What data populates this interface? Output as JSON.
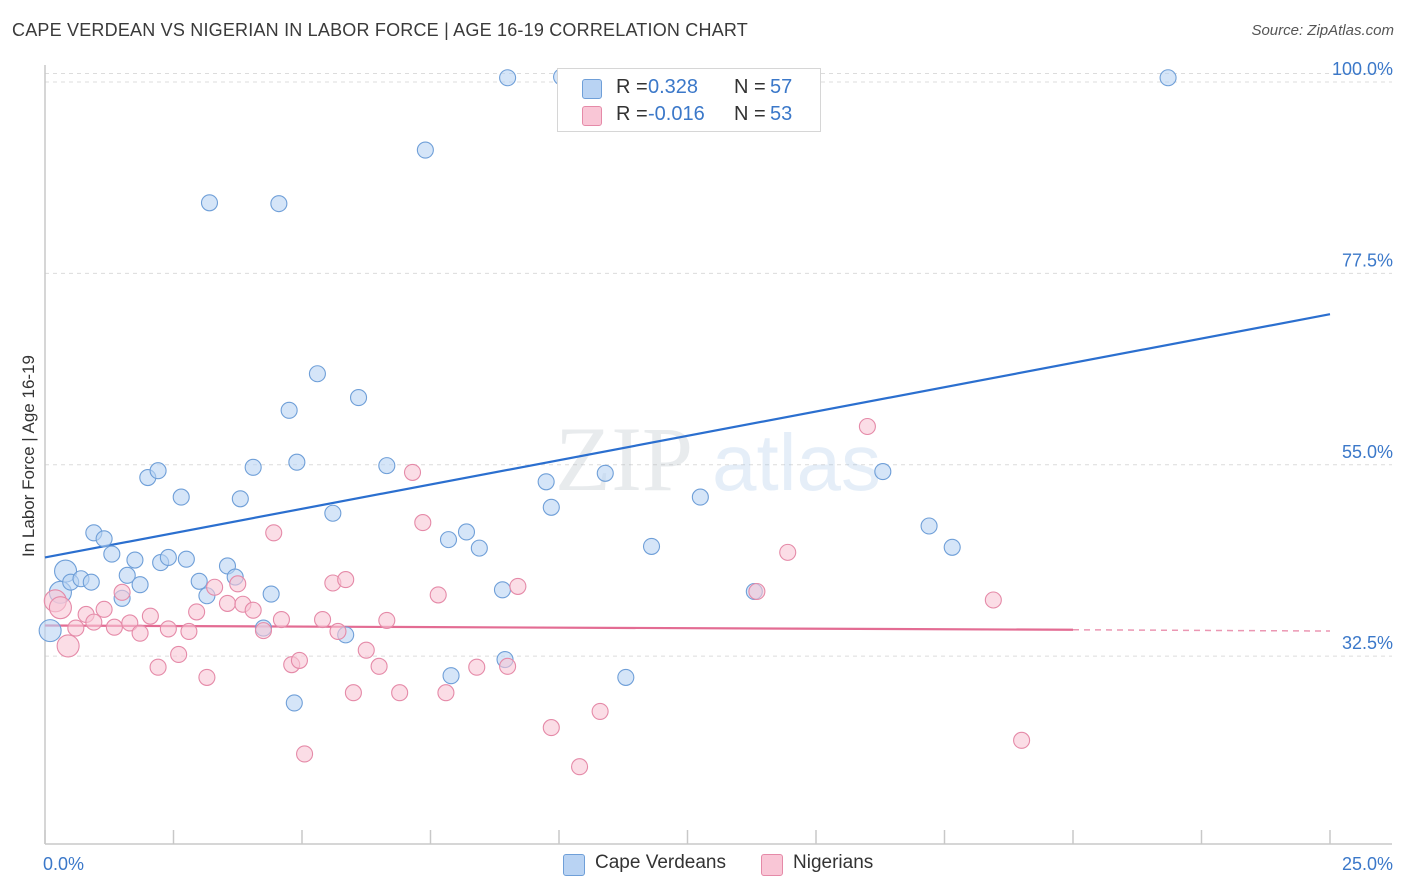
{
  "header": {
    "title": "CAPE VERDEAN VS NIGERIAN IN LABOR FORCE | AGE 16-19 CORRELATION CHART",
    "source": "Source: ZipAtlas.com"
  },
  "watermark": {
    "zip": "ZIP",
    "atlas": "atlas"
  },
  "legend": {
    "rows": [
      {
        "r_label": "R =",
        "r_value": "0.328",
        "n_label": "N =",
        "n_value": "57",
        "color": "#b9d3f3",
        "border": "#6f9fd8"
      },
      {
        "r_label": "R =",
        "r_value": "-0.016",
        "n_label": "N =",
        "n_value": "53",
        "color": "#f9c6d6",
        "border": "#e58aa8"
      }
    ]
  },
  "bottom_legend": {
    "items": [
      {
        "label": "Cape Verdeans",
        "color": "#b9d3f3",
        "border": "#6f9fd8"
      },
      {
        "label": "Nigerians",
        "color": "#f9c6d6",
        "border": "#e58aa8"
      }
    ]
  },
  "chart_data": {
    "type": "scatter",
    "title": "CAPE VERDEAN VS NIGERIAN IN LABOR FORCE | AGE 16-19 CORRELATION CHART",
    "xlabel": "",
    "ylabel": "In Labor Force | Age 16-19",
    "xlim": [
      0,
      25
    ],
    "ylim": [
      13,
      102
    ],
    "x_tick_labels": [
      "0.0%",
      "25.0%"
    ],
    "y_ticks": [
      32.5,
      55.0,
      77.5,
      100.0
    ],
    "y_tick_labels": [
      "32.5%",
      "55.0%",
      "77.5%",
      "100.0%"
    ],
    "grid": true,
    "series": [
      {
        "name": "Cape Verdeans",
        "color": "#6f9fd8",
        "fill": "#b9d3f3",
        "line_color": "#2b6fcf",
        "trend": {
          "x": [
            0,
            25
          ],
          "y": [
            44.1,
            72.7
          ]
        },
        "points": [
          [
            0.1,
            35.5
          ],
          [
            0.3,
            40.0
          ],
          [
            0.4,
            42.5
          ],
          [
            0.5,
            41.2
          ],
          [
            0.7,
            41.6
          ],
          [
            0.9,
            41.2
          ],
          [
            0.95,
            47.0
          ],
          [
            1.15,
            46.3
          ],
          [
            1.3,
            44.5
          ],
          [
            1.5,
            39.3
          ],
          [
            1.6,
            42.0
          ],
          [
            1.75,
            43.8
          ],
          [
            1.85,
            40.9
          ],
          [
            2.0,
            53.5
          ],
          [
            2.2,
            54.3
          ],
          [
            2.25,
            43.5
          ],
          [
            2.4,
            44.1
          ],
          [
            2.65,
            51.2
          ],
          [
            2.75,
            43.9
          ],
          [
            3.0,
            41.3
          ],
          [
            3.15,
            39.6
          ],
          [
            3.2,
            85.8
          ],
          [
            3.55,
            43.1
          ],
          [
            3.7,
            41.8
          ],
          [
            3.8,
            51.0
          ],
          [
            4.05,
            54.7
          ],
          [
            4.25,
            35.8
          ],
          [
            4.4,
            39.8
          ],
          [
            4.55,
            85.7
          ],
          [
            4.75,
            61.4
          ],
          [
            4.85,
            27.0
          ],
          [
            4.9,
            55.3
          ],
          [
            5.3,
            65.7
          ],
          [
            5.6,
            49.3
          ],
          [
            5.85,
            35.0
          ],
          [
            6.1,
            62.9
          ],
          [
            6.65,
            54.9
          ],
          [
            7.4,
            92.0
          ],
          [
            7.85,
            46.2
          ],
          [
            7.9,
            30.2
          ],
          [
            8.2,
            47.1
          ],
          [
            8.45,
            45.2
          ],
          [
            8.9,
            40.3
          ],
          [
            8.95,
            32.1
          ],
          [
            9.0,
            100.5
          ],
          [
            9.75,
            53.0
          ],
          [
            9.85,
            50.0
          ],
          [
            10.05,
            100.6
          ],
          [
            10.9,
            54.0
          ],
          [
            11.3,
            30.0
          ],
          [
            11.8,
            45.4
          ],
          [
            12.75,
            51.2
          ],
          [
            13.8,
            40.1
          ],
          [
            16.3,
            54.2
          ],
          [
            17.2,
            47.8
          ],
          [
            17.65,
            45.3
          ],
          [
            21.85,
            100.5
          ]
        ]
      },
      {
        "name": "Nigerians",
        "color": "#e58aa8",
        "fill": "#f9c6d6",
        "line_color": "#e36c93",
        "trend": {
          "x": [
            0,
            20.0
          ],
          "y": [
            36.1,
            35.6
          ]
        },
        "trend_dashed": {
          "x": [
            20.0,
            25
          ],
          "y": [
            35.6,
            35.45
          ]
        },
        "points": [
          [
            0.2,
            39.0
          ],
          [
            0.3,
            38.2
          ],
          [
            0.45,
            33.7
          ],
          [
            0.6,
            35.8
          ],
          [
            0.8,
            37.4
          ],
          [
            0.95,
            36.5
          ],
          [
            1.15,
            38.0
          ],
          [
            1.35,
            35.9
          ],
          [
            1.5,
            40.0
          ],
          [
            1.65,
            36.4
          ],
          [
            1.85,
            35.2
          ],
          [
            2.05,
            37.2
          ],
          [
            2.2,
            31.2
          ],
          [
            2.4,
            35.7
          ],
          [
            2.6,
            32.7
          ],
          [
            2.8,
            35.4
          ],
          [
            2.95,
            37.7
          ],
          [
            3.15,
            30.0
          ],
          [
            3.3,
            40.6
          ],
          [
            3.55,
            38.7
          ],
          [
            3.75,
            41.0
          ],
          [
            3.85,
            38.6
          ],
          [
            4.05,
            37.9
          ],
          [
            4.25,
            35.5
          ],
          [
            4.45,
            47.0
          ],
          [
            4.6,
            36.8
          ],
          [
            4.8,
            31.5
          ],
          [
            4.95,
            32.0
          ],
          [
            5.05,
            21.0
          ],
          [
            5.4,
            36.8
          ],
          [
            5.6,
            41.1
          ],
          [
            5.7,
            35.4
          ],
          [
            5.85,
            41.5
          ],
          [
            6.0,
            28.2
          ],
          [
            6.25,
            33.2
          ],
          [
            6.5,
            31.3
          ],
          [
            6.65,
            36.7
          ],
          [
            6.9,
            28.2
          ],
          [
            7.15,
            54.1
          ],
          [
            7.35,
            48.2
          ],
          [
            7.65,
            39.7
          ],
          [
            7.8,
            28.2
          ],
          [
            8.4,
            31.2
          ],
          [
            9.0,
            31.3
          ],
          [
            9.2,
            40.7
          ],
          [
            9.85,
            24.1
          ],
          [
            10.4,
            19.5
          ],
          [
            10.8,
            26.0
          ],
          [
            13.85,
            40.1
          ],
          [
            14.45,
            44.7
          ],
          [
            16.0,
            59.5
          ],
          [
            18.45,
            39.1
          ],
          [
            19.0,
            22.6
          ]
        ]
      }
    ]
  }
}
